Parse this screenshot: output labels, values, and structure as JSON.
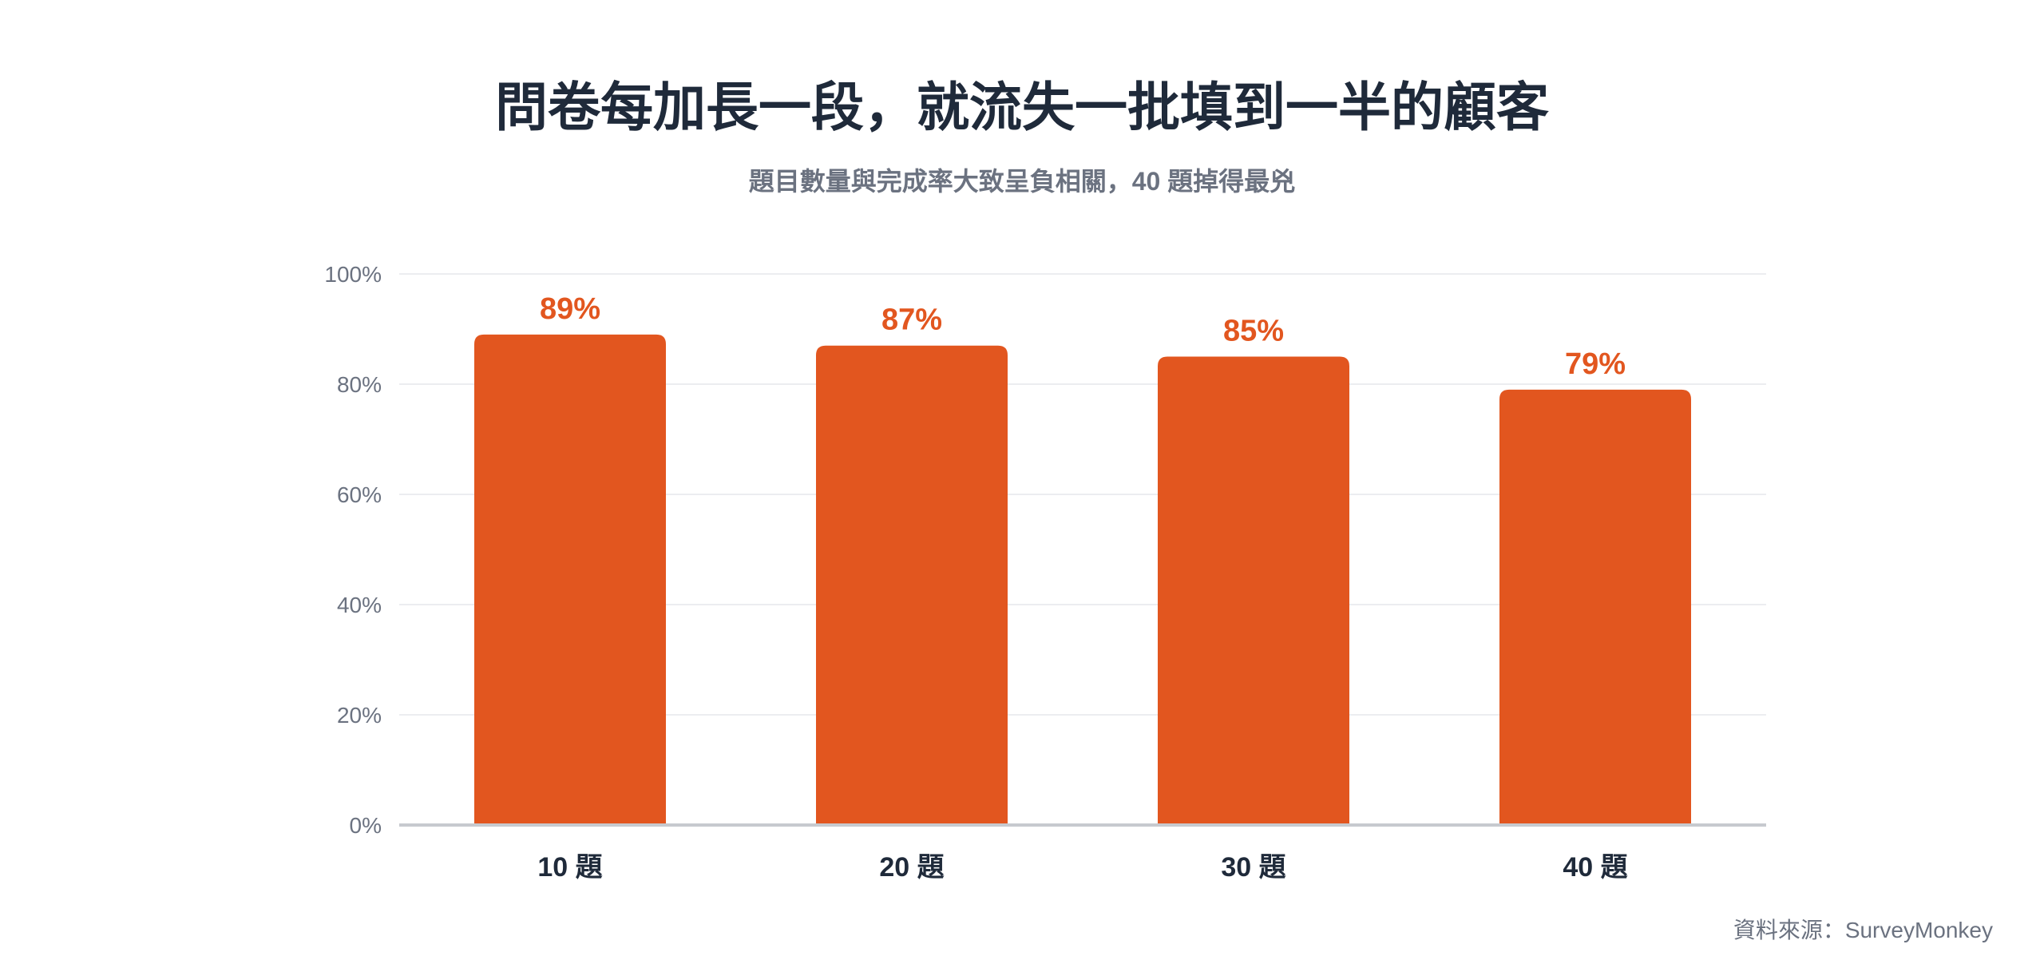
{
  "header": {
    "title": "問卷每加長一段，就流失一批填到一半的顧客",
    "subtitle": "題目數量與完成率大致呈負相關，40 題掉得最兇"
  },
  "footer": {
    "source": "資料來源：SurveyMonkey"
  },
  "colors": {
    "bar": "#e2561f",
    "label": "#e2561f"
  },
  "chart_data": {
    "type": "bar",
    "categories": [
      "10 題",
      "20 題",
      "30 題",
      "40 題"
    ],
    "values": [
      89,
      87,
      85,
      79
    ],
    "value_labels": [
      "89%",
      "87%",
      "85%",
      "79%"
    ],
    "title": "問卷每加長一段，就流失一批填到一半的顧客",
    "subtitle": "題目數量與完成率大致呈負相關，40 題掉得最兇",
    "xlabel": "",
    "ylabel": "",
    "ylim": [
      0,
      100
    ],
    "yticks": [
      0,
      20,
      40,
      60,
      80,
      100
    ],
    "ytick_labels": [
      "0%",
      "20%",
      "40%",
      "60%",
      "80%",
      "100%"
    ],
    "grid": true,
    "legend": "none"
  }
}
